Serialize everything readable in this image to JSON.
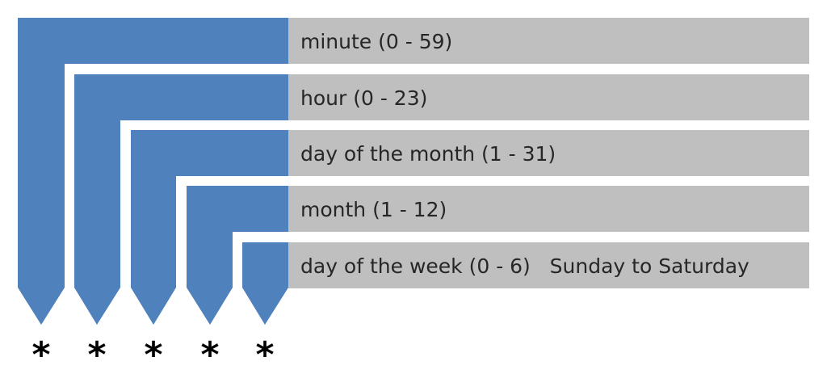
{
  "colors": {
    "arrow": "#4f81bd",
    "bar": "#bfbfbf",
    "label_text": "#262626",
    "star": "#000000"
  },
  "fields": [
    {
      "label": "minute (0 - 59)",
      "marker": "*"
    },
    {
      "label": "hour (0 - 23)",
      "marker": "*"
    },
    {
      "label": "day of the month (1 - 31)",
      "marker": "*"
    },
    {
      "label": "month (1 - 12)",
      "marker": "*"
    },
    {
      "label": "day of the week (0 - 6)   Sunday to Saturday",
      "marker": "*"
    }
  ]
}
